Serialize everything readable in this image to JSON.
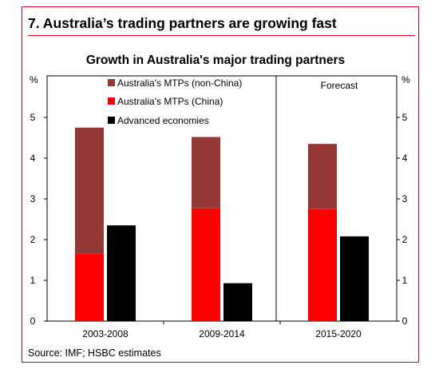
{
  "headline": "7. Australia’s trading partners are growing fast",
  "source": "Source: IMF; HSBC estimates",
  "chart_data": {
    "type": "bar",
    "stacked_first_two": true,
    "title": "Growth in Australia's major trading partners",
    "categories": [
      "2003-2008",
      "2009-2014",
      "2015-2020"
    ],
    "series": [
      {
        "name": "Australia's MTPs (non-China)",
        "color": "#953735",
        "values": [
          3.1,
          1.75,
          1.6
        ]
      },
      {
        "name": "Australia's MTPs (China)",
        "color": "#ff0000",
        "values": [
          1.65,
          2.77,
          2.75
        ]
      },
      {
        "name": "Advanced economies",
        "color": "#000000",
        "values": [
          2.35,
          0.93,
          2.08
        ]
      }
    ],
    "y_unit_left": "%",
    "y_unit_right": "%",
    "ylim": [
      0,
      5
    ],
    "yticks": [
      "0",
      "1",
      "2",
      "3",
      "4",
      "5"
    ],
    "annotation": "Forecast",
    "legend_position": "top-left",
    "grid": false
  }
}
